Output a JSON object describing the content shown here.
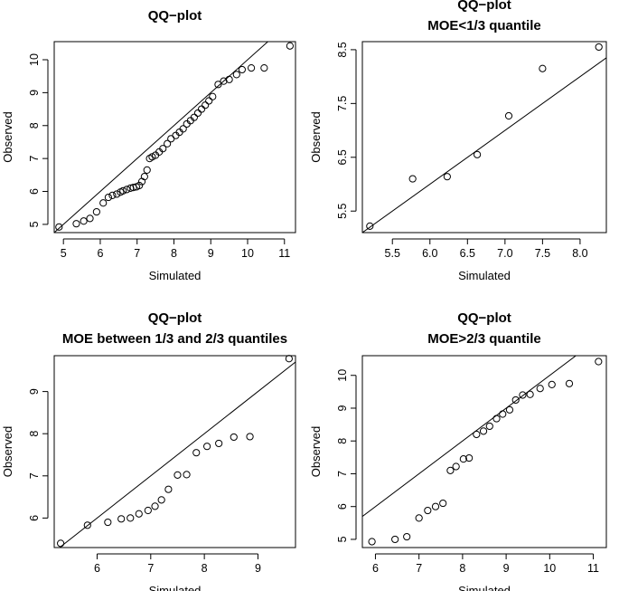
{
  "chart_data": [
    {
      "type": "scatter",
      "title": [
        "QQ−plot"
      ],
      "xlabel": "Simulated",
      "ylabel": "Observed",
      "xlim": [
        4.75,
        11.3
      ],
      "ylim": [
        4.75,
        10.55
      ],
      "xticks": [
        5,
        6,
        7,
        8,
        9,
        10,
        11
      ],
      "yticks": [
        5,
        6,
        7,
        8,
        9,
        10
      ],
      "xtick_labels": [
        "5",
        "6",
        "7",
        "8",
        "9",
        "10",
        "11"
      ],
      "ytick_labels": [
        "5",
        "6",
        "7",
        "8",
        "9",
        "10"
      ],
      "reference_line": {
        "intercept": 0,
        "slope": 1
      },
      "points": {
        "x": [
          4.88,
          5.35,
          5.55,
          5.72,
          5.9,
          6.08,
          6.22,
          6.33,
          6.45,
          6.55,
          6.62,
          6.72,
          6.82,
          6.9,
          6.98,
          7.06,
          7.13,
          7.2,
          7.27,
          7.34,
          7.41,
          7.5,
          7.6,
          7.7,
          7.82,
          7.92,
          8.05,
          8.15,
          8.25,
          8.35,
          8.45,
          8.55,
          8.65,
          8.75,
          8.85,
          8.95,
          9.05,
          9.2,
          9.35,
          9.5,
          9.7,
          9.85,
          10.1,
          10.45,
          11.15
        ],
        "y": [
          4.92,
          5.02,
          5.1,
          5.18,
          5.38,
          5.65,
          5.82,
          5.88,
          5.92,
          5.98,
          6.02,
          6.06,
          6.1,
          6.12,
          6.14,
          6.18,
          6.3,
          6.45,
          6.65,
          7.0,
          7.05,
          7.1,
          7.2,
          7.3,
          7.45,
          7.6,
          7.7,
          7.8,
          7.9,
          8.05,
          8.15,
          8.25,
          8.38,
          8.5,
          8.62,
          8.75,
          8.88,
          9.25,
          9.35,
          9.4,
          9.55,
          9.7,
          9.75,
          9.75,
          10.42
        ]
      }
    },
    {
      "type": "scatter",
      "title": [
        "QQ−plot",
        "MOE<1/3 quantile"
      ],
      "xlabel": "Simulated",
      "ylabel": "Observed",
      "xlim": [
        5.1,
        8.35
      ],
      "ylim": [
        5.1,
        8.65
      ],
      "xticks": [
        5.5,
        6.0,
        6.5,
        7.0,
        7.5,
        8.0
      ],
      "yticks": [
        5.5,
        6.5,
        7.5,
        8.5
      ],
      "xtick_labels": [
        "5.5",
        "6.0",
        "6.5",
        "7.0",
        "7.5",
        "8.0"
      ],
      "ytick_labels": [
        "5.5",
        "6.5",
        "7.5",
        "8.5"
      ],
      "reference_line": {
        "intercept": 0,
        "slope": 1
      },
      "points": {
        "x": [
          5.2,
          5.77,
          6.23,
          6.63,
          7.05,
          7.5,
          8.25
        ],
        "y": [
          5.22,
          6.1,
          6.14,
          6.55,
          7.27,
          8.15,
          8.55
        ]
      }
    },
    {
      "type": "scatter",
      "title": [
        "QQ−plot",
        "MOE between 1/3 and 2/3 quantiles"
      ],
      "xlabel": "Simulated",
      "ylabel": "Observed",
      "xlim": [
        5.2,
        9.7
      ],
      "ylim": [
        5.3,
        9.85
      ],
      "xticks": [
        6,
        7,
        8,
        9
      ],
      "yticks": [
        6,
        7,
        8,
        9
      ],
      "xtick_labels": [
        "6",
        "7",
        "8",
        "9"
      ],
      "ytick_labels": [
        "6",
        "7",
        "8",
        "9"
      ],
      "reference_line": {
        "intercept": 0,
        "slope": 1
      },
      "points": {
        "x": [
          5.32,
          5.82,
          6.2,
          6.45,
          6.62,
          6.78,
          6.95,
          7.08,
          7.2,
          7.33,
          7.5,
          7.67,
          7.85,
          8.05,
          8.27,
          8.55,
          8.85,
          9.58
        ],
        "y": [
          5.4,
          5.83,
          5.9,
          5.98,
          6.0,
          6.1,
          6.18,
          6.28,
          6.43,
          6.68,
          7.02,
          7.03,
          7.55,
          7.7,
          7.77,
          7.92,
          7.93,
          9.78
        ]
      }
    },
    {
      "type": "scatter",
      "title": [
        "QQ−plot",
        "MOE>2/3 quantile"
      ],
      "xlabel": "Simulated",
      "ylabel": "Observed",
      "xlim": [
        5.7,
        11.3
      ],
      "ylim": [
        4.75,
        10.6
      ],
      "xticks": [
        6,
        7,
        8,
        9,
        10,
        11
      ],
      "yticks": [
        5,
        6,
        7,
        8,
        9,
        10
      ],
      "xtick_labels": [
        "6",
        "7",
        "8",
        "9",
        "10",
        "11"
      ],
      "ytick_labels": [
        "5",
        "6",
        "7",
        "8",
        "9",
        "10"
      ],
      "reference_line": {
        "intercept": 0,
        "slope": 1
      },
      "points": {
        "x": [
          5.92,
          6.45,
          6.72,
          7.0,
          7.2,
          7.38,
          7.55,
          7.72,
          7.85,
          8.02,
          8.15,
          8.32,
          8.48,
          8.62,
          8.78,
          8.92,
          9.08,
          9.22,
          9.38,
          9.55,
          9.78,
          10.05,
          10.45,
          11.12
        ],
        "y": [
          4.93,
          5.0,
          5.08,
          5.65,
          5.88,
          6.0,
          6.1,
          7.1,
          7.22,
          7.45,
          7.48,
          8.2,
          8.3,
          8.45,
          8.68,
          8.82,
          8.95,
          9.25,
          9.4,
          9.42,
          9.6,
          9.72,
          9.75,
          10.42
        ]
      }
    }
  ]
}
